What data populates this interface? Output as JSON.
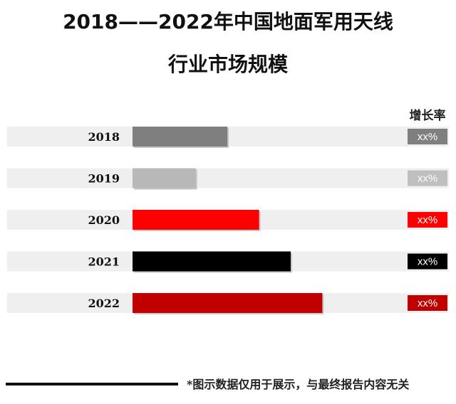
{
  "title": {
    "line1": "2018——2022年中国地面军用天线",
    "line2": "行业市场规模"
  },
  "growth_header": "增长率",
  "footer_note": "*图示数据仅用于展示，与最终报告内容无关",
  "chart_data": {
    "type": "bar",
    "orientation": "horizontal",
    "categories": [
      "2018",
      "2019",
      "2020",
      "2021",
      "2022"
    ],
    "values": [
      3.0,
      2.0,
      4.0,
      5.0,
      6.0
    ],
    "xlim": [
      0,
      10
    ],
    "bar_colors": [
      "#7f7f7f",
      "#b8b8b8",
      "#ff0000",
      "#000000",
      "#c00000"
    ],
    "growth_rates": [
      "xx%",
      "xx%",
      "xx%",
      "xx%",
      "xx%"
    ],
    "growth_colors": [
      "#7f7f7f",
      "#bfbfbf",
      "#ff0000",
      "#000000",
      "#c00000"
    ]
  }
}
